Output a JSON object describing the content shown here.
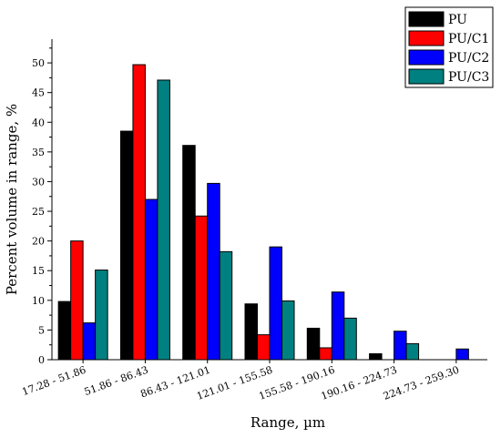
{
  "chart_data": {
    "type": "bar",
    "categories": [
      "17.28 - 51.86",
      "51.86 - 86.43",
      "86.43 - 121.01",
      "121.01 - 155.58",
      "155.58 - 190.16",
      "190.16 - 224.73",
      "224.73 - 259.30"
    ],
    "series": [
      {
        "name": "PU",
        "color": "#000000",
        "values": [
          9.8,
          38.5,
          36.1,
          9.4,
          5.3,
          1.0,
          0.0
        ]
      },
      {
        "name": "PU/C1",
        "color": "#ff0000",
        "values": [
          20.0,
          49.7,
          24.2,
          4.2,
          2.0,
          0.0,
          0.0
        ]
      },
      {
        "name": "PU/C2",
        "color": "#0000ff",
        "values": [
          6.2,
          27.0,
          29.7,
          19.0,
          11.4,
          4.8,
          1.8
        ]
      },
      {
        "name": "PU/C3",
        "color": "#008080",
        "values": [
          15.1,
          47.1,
          18.2,
          9.9,
          7.0,
          2.7,
          0.0
        ]
      }
    ],
    "xlabel": "Range, µm",
    "ylabel": "Percent volume in range, %",
    "ylim": [
      0,
      54
    ],
    "yticks": [
      0,
      5,
      10,
      15,
      20,
      25,
      30,
      35,
      40,
      45,
      50
    ],
    "legend": "top-right",
    "grid": false
  }
}
